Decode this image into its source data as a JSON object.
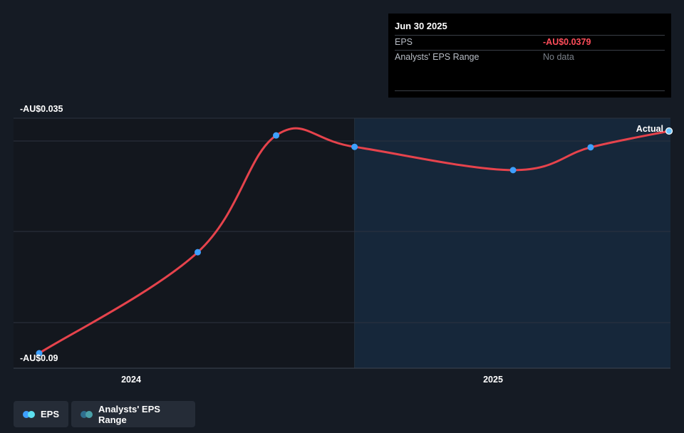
{
  "chart_data": {
    "type": "line",
    "x": [
      "2023-06-30",
      "2023-12-31",
      "2024-03-31",
      "2024-06-30",
      "2024-12-31",
      "2025-03-31",
      "2025-06-30"
    ],
    "series": [
      {
        "name": "EPS",
        "values": [
          -0.0885,
          -0.0655,
          -0.0389,
          -0.0415,
          -0.0468,
          -0.0416,
          -0.0379
        ]
      }
    ],
    "ylim": [
      -0.09,
      -0.035
    ],
    "y_tick_labels": [
      "-AU$0.035",
      "-AU$0.09"
    ],
    "x_tick_labels": [
      "2024",
      "2025"
    ],
    "forecast_region_start": "2024-06-30",
    "annotations": [
      "Actual"
    ],
    "grid": true,
    "colors": {
      "line": "#e6434c",
      "point": "#3ea0ff",
      "forecast_fill": "#16273a",
      "past_fill": "#13171e"
    }
  },
  "tooltip": {
    "date": "Jun 30 2025",
    "rows": [
      {
        "label": "EPS",
        "value": "-AU$0.0379"
      },
      {
        "label": "Analysts' EPS Range",
        "value": "No data"
      }
    ]
  },
  "legend": [
    {
      "label": "EPS",
      "colors": [
        "#3ea0ff",
        "#5ce0f0"
      ]
    },
    {
      "label": "Analysts' EPS Range",
      "colors": [
        "#2f6e8e",
        "#4aa0a8"
      ]
    }
  ]
}
